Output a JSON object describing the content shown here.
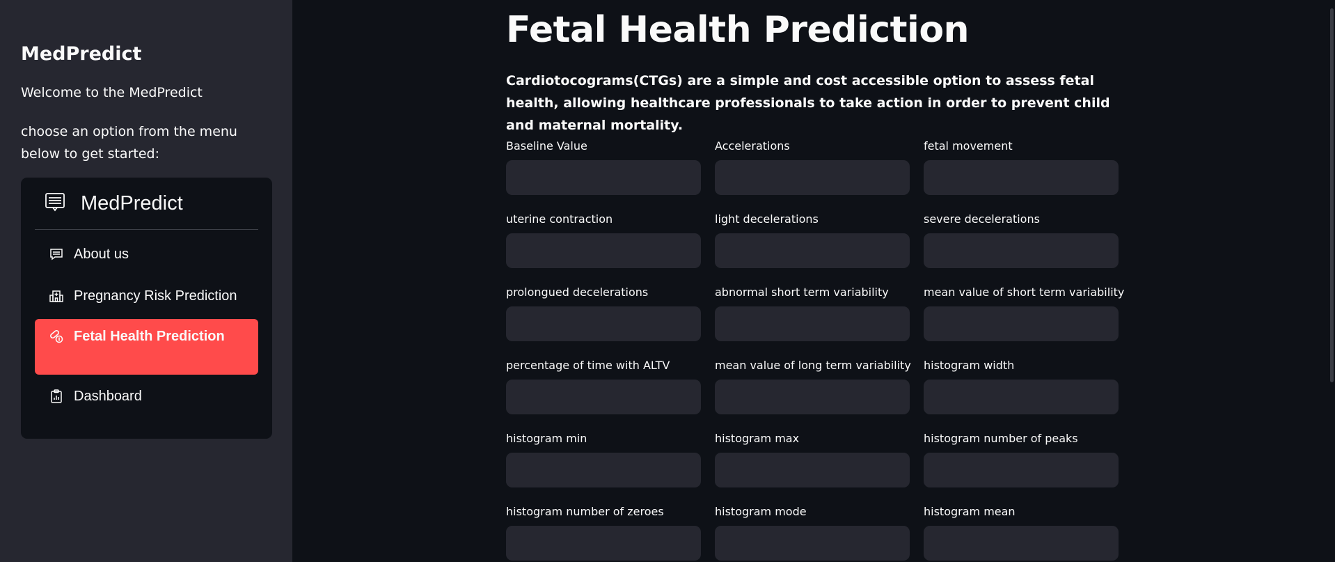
{
  "sidebar": {
    "title": "MedPredict",
    "welcome": "Welcome to the MedPredict",
    "choose": "choose an option from the menu below to get started:",
    "menu": {
      "header_icon": "list-icon",
      "header_title": "MedPredict",
      "items": [
        {
          "label": "About us",
          "icon": "chat-icon"
        },
        {
          "label": "Pregnancy Risk Prediction",
          "icon": "hospital-icon"
        },
        {
          "label": "Fetal Health Prediction",
          "icon": "capsule-icon",
          "active": true
        },
        {
          "label": "Dashboard",
          "icon": "clipboard-data-icon"
        }
      ],
      "accent_color": "#ff4b4b"
    }
  },
  "main": {
    "title": "Fetal Health Prediction",
    "intro": "Cardiotocograms(CTGs) are a simple and cost accessible option to assess fetal health, allowing healthcare professionals to take action in order to prevent child and maternal mortality.",
    "fields": [
      {
        "label": "Baseline Value",
        "value": ""
      },
      {
        "label": "Accelerations",
        "value": ""
      },
      {
        "label": "fetal movement",
        "value": ""
      },
      {
        "label": "uterine contraction",
        "value": ""
      },
      {
        "label": "light decelerations",
        "value": ""
      },
      {
        "label": "severe decelerations",
        "value": ""
      },
      {
        "label": "prolongued decelerations",
        "value": ""
      },
      {
        "label": "abnormal short term variability",
        "value": ""
      },
      {
        "label": "mean value of short term variability",
        "value": ""
      },
      {
        "label": "percentage of time with ALTV",
        "value": ""
      },
      {
        "label": "mean value of long term variability",
        "value": ""
      },
      {
        "label": "histogram width",
        "value": ""
      },
      {
        "label": "histogram min",
        "value": ""
      },
      {
        "label": "histogram max",
        "value": ""
      },
      {
        "label": "histogram number of peaks",
        "value": ""
      },
      {
        "label": "histogram number of zeroes",
        "value": ""
      },
      {
        "label": "histogram mode",
        "value": ""
      },
      {
        "label": "histogram mean",
        "value": ""
      }
    ]
  }
}
